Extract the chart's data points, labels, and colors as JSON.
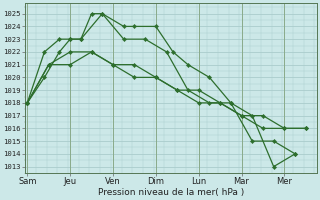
{
  "xlabel": "Pression niveau de la mer( hPa )",
  "bg_color": "#cce8e8",
  "grid_color": "#aacccc",
  "line_color": "#2d6e2d",
  "yticks": [
    1013,
    1014,
    1015,
    1016,
    1017,
    1018,
    1019,
    1020,
    1021,
    1022,
    1023,
    1024,
    1025
  ],
  "x_labels": [
    "Sam",
    "Jeu",
    "Ven",
    "Dim",
    "Lun",
    "Mar",
    "Mer"
  ],
  "x_tick_pos": [
    0,
    2,
    4,
    6,
    8,
    10,
    12
  ],
  "ylim_low": 1012.5,
  "ylim_high": 1025.8,
  "xlim_low": -0.1,
  "xlim_high": 13.5,
  "series": [
    {
      "x": [
        0,
        0.8,
        1.5,
        2.0,
        2.5,
        3.0,
        3.5,
        4.5,
        5.0,
        6.0,
        6.8,
        7.5,
        8.5,
        9.5,
        10.5,
        11.5,
        12.5
      ],
      "y": [
        1018,
        1020,
        1022,
        1023,
        1023,
        1025,
        1025,
        1024,
        1024,
        1024,
        1022,
        1021,
        1020,
        1018,
        1017,
        1013,
        1014
      ]
    },
    {
      "x": [
        0,
        0.8,
        1.5,
        2.0,
        2.5,
        3.5,
        4.5,
        5.5,
        6.5,
        7.5,
        8.5,
        9.5,
        10.5,
        11.5,
        12.5
      ],
      "y": [
        1018,
        1022,
        1023,
        1023,
        1023,
        1025,
        1023,
        1023,
        1022,
        1019,
        1018,
        1018,
        1015,
        1015,
        1014
      ]
    },
    {
      "x": [
        0,
        1,
        2,
        3,
        4,
        5,
        6,
        7,
        8,
        9,
        10,
        11,
        12,
        13
      ],
      "y": [
        1018,
        1021,
        1022,
        1022,
        1021,
        1021,
        1020,
        1019,
        1019,
        1018,
        1017,
        1016,
        1016,
        1016
      ]
    },
    {
      "x": [
        0,
        1,
        2,
        3,
        4,
        5,
        6,
        7,
        8,
        9,
        10,
        11,
        12,
        13
      ],
      "y": [
        1018,
        1021,
        1021,
        1022,
        1021,
        1020,
        1020,
        1019,
        1018,
        1018,
        1017,
        1017,
        1016,
        1016
      ]
    }
  ]
}
